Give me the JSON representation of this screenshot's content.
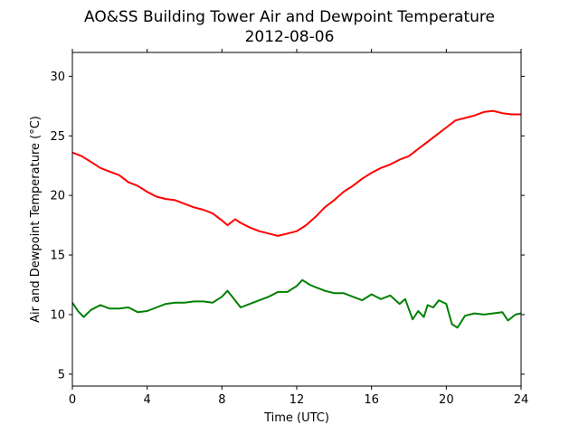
{
  "chart_data": {
    "type": "line",
    "title": "AO&SS Building Tower Air and Dewpoint Temperature",
    "subtitle": "2012-08-06",
    "xlabel": "Time (UTC)",
    "ylabel": "Air and Dewpoint Temperature (°C)",
    "xlim": [
      0,
      24
    ],
    "ylim": [
      4,
      32
    ],
    "xticks": [
      0,
      4,
      8,
      12,
      16,
      20,
      24
    ],
    "yticks": [
      5,
      10,
      15,
      20,
      25,
      30
    ],
    "grid": false,
    "legend": "none",
    "series": [
      {
        "color": "#ff0000",
        "x": [
          0,
          0.5,
          1,
          1.5,
          2,
          2.5,
          3,
          3.5,
          4,
          4.5,
          5,
          5.5,
          6,
          6.5,
          7,
          7.5,
          8,
          8.3,
          8.7,
          9,
          9.5,
          10,
          10.5,
          11,
          11.5,
          12,
          12.5,
          13,
          13.5,
          14,
          14.5,
          15,
          15.5,
          16,
          16.5,
          17,
          17.5,
          18,
          18.5,
          19,
          19.5,
          20,
          20.5,
          21,
          21.5,
          22,
          22.5,
          23,
          23.5,
          24
        ],
        "y": [
          23.6,
          23.3,
          22.8,
          22.3,
          22.0,
          21.7,
          21.1,
          20.8,
          20.3,
          19.9,
          19.7,
          19.6,
          19.3,
          19.0,
          18.8,
          18.5,
          17.9,
          17.5,
          18.0,
          17.7,
          17.3,
          17.0,
          16.8,
          16.6,
          16.8,
          17.0,
          17.5,
          18.2,
          19.0,
          19.6,
          20.3,
          20.8,
          21.4,
          21.9,
          22.3,
          22.6,
          23.0,
          23.3,
          23.9,
          24.5,
          25.1,
          25.7,
          26.3,
          26.5,
          26.7,
          27.0,
          27.1,
          26.9,
          26.8,
          26.8
        ]
      },
      {
        "color": "#008000",
        "x": [
          0,
          0.3,
          0.6,
          1,
          1.5,
          2,
          2.5,
          3,
          3.5,
          4,
          4.5,
          5,
          5.5,
          6,
          6.5,
          7,
          7.5,
          8,
          8.3,
          8.7,
          9,
          9.5,
          10,
          10.5,
          11,
          11.5,
          12,
          12.3,
          12.7,
          13,
          13.5,
          14,
          14.5,
          15,
          15.5,
          16,
          16.5,
          17,
          17.5,
          17.8,
          18.2,
          18.5,
          18.8,
          19,
          19.3,
          19.6,
          20,
          20.3,
          20.6,
          21,
          21.5,
          22,
          22.5,
          23,
          23.3,
          23.7,
          24
        ],
        "y": [
          11.0,
          10.3,
          9.8,
          10.4,
          10.8,
          10.5,
          10.5,
          10.6,
          10.2,
          10.3,
          10.6,
          10.9,
          11.0,
          11.0,
          11.1,
          11.1,
          11.0,
          11.5,
          12.0,
          11.2,
          10.6,
          10.9,
          11.2,
          11.5,
          11.9,
          11.9,
          12.4,
          12.9,
          12.5,
          12.3,
          12.0,
          11.8,
          11.8,
          11.5,
          11.2,
          11.7,
          11.3,
          11.6,
          10.9,
          11.3,
          9.6,
          10.3,
          9.8,
          10.8,
          10.6,
          11.2,
          10.9,
          9.2,
          8.9,
          9.9,
          10.1,
          10.0,
          10.1,
          10.2,
          9.5,
          10.0,
          10.1
        ]
      }
    ]
  }
}
